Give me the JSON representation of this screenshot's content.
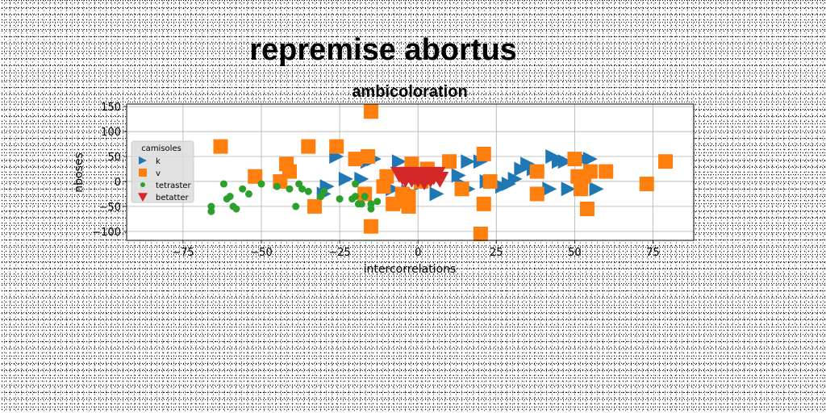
{
  "suptitle": "repremise abortus",
  "chart_data": {
    "type": "scatter",
    "title": "ambicoloration",
    "xlabel": "intercorrelations",
    "ylabel": "nboses",
    "xlim": [
      -93,
      88
    ],
    "ylim": [
      -118,
      155
    ],
    "xticks": [
      -75,
      -50,
      -25,
      0,
      25,
      50,
      75
    ],
    "yticks": [
      -100,
      -50,
      0,
      50,
      100,
      150
    ],
    "xtick_labels": [
      "−75",
      "−50",
      "−25",
      "0",
      "25",
      "50",
      "75"
    ],
    "ytick_labels": [
      "−100",
      "−50",
      "0",
      "50",
      "100",
      "150"
    ],
    "grid": true,
    "legend": {
      "title": "camisoles",
      "position": "left"
    },
    "series": [
      {
        "name": "k",
        "marker": "triangle-right",
        "color": "#1f77b4",
        "points": [
          [
            -26,
            50
          ],
          [
            -6,
            40
          ],
          [
            -3,
            -20
          ],
          [
            4,
            15
          ],
          [
            6,
            -25
          ],
          [
            13,
            12
          ],
          [
            16,
            -15
          ],
          [
            16,
            40
          ],
          [
            20,
            40
          ],
          [
            22,
            0
          ],
          [
            27,
            -10
          ],
          [
            29,
            -5
          ],
          [
            31,
            5
          ],
          [
            33,
            25
          ],
          [
            35,
            35
          ],
          [
            37,
            25
          ],
          [
            43,
            50
          ],
          [
            45,
            40
          ],
          [
            47,
            40
          ],
          [
            52,
            -15
          ],
          [
            53,
            45
          ],
          [
            54,
            10
          ],
          [
            55,
            45
          ],
          [
            57,
            -15
          ],
          [
            42,
            -15
          ],
          [
            -29,
            -10
          ],
          [
            -23,
            5
          ],
          [
            -18,
            5
          ],
          [
            -16,
            40
          ],
          [
            -14,
            45
          ],
          [
            -8,
            -15
          ],
          [
            -2,
            10
          ],
          [
            1,
            -5
          ],
          [
            48,
            -15
          ],
          [
            14,
            -5
          ],
          [
            -30,
            -25
          ]
        ]
      },
      {
        "name": "v",
        "marker": "square",
        "color": "#ff7f0e",
        "points": [
          [
            -63,
            70
          ],
          [
            -52,
            10
          ],
          [
            -44,
            0
          ],
          [
            -42,
            35
          ],
          [
            -41,
            20
          ],
          [
            -35,
            70
          ],
          [
            -33,
            -50
          ],
          [
            -26,
            70
          ],
          [
            -20,
            45
          ],
          [
            -17,
            -25
          ],
          [
            -16,
            50
          ],
          [
            -15,
            140
          ],
          [
            -15,
            -90
          ],
          [
            -11,
            -10
          ],
          [
            -10,
            10
          ],
          [
            -8,
            -45
          ],
          [
            -5,
            -40
          ],
          [
            -5,
            -25
          ],
          [
            -3,
            -50
          ],
          [
            -3,
            -30
          ],
          [
            -2,
            35
          ],
          [
            1,
            0
          ],
          [
            3,
            25
          ],
          [
            10,
            40
          ],
          [
            14,
            -15
          ],
          [
            20,
            -105
          ],
          [
            21,
            55
          ],
          [
            21,
            -45
          ],
          [
            23,
            0
          ],
          [
            38,
            -25
          ],
          [
            38,
            20
          ],
          [
            50,
            45
          ],
          [
            51,
            10
          ],
          [
            52,
            -15
          ],
          [
            53,
            10
          ],
          [
            54,
            -55
          ],
          [
            55,
            20
          ],
          [
            60,
            20
          ],
          [
            73,
            -5
          ],
          [
            79,
            40
          ]
        ]
      },
      {
        "name": "tetraster",
        "marker": "circle",
        "color": "#2ca02c",
        "points": [
          [
            -66,
            -60
          ],
          [
            -66,
            -50
          ],
          [
            -62,
            -5
          ],
          [
            -61,
            -35
          ],
          [
            -60,
            -30
          ],
          [
            -59,
            -50
          ],
          [
            -58,
            -55
          ],
          [
            -56,
            -15
          ],
          [
            -54,
            -25
          ],
          [
            -50,
            -5
          ],
          [
            -45,
            -10
          ],
          [
            -41,
            -15
          ],
          [
            -39,
            -50
          ],
          [
            -38,
            -5
          ],
          [
            -37,
            -15
          ],
          [
            -35,
            -20
          ],
          [
            -31,
            -30
          ],
          [
            -30,
            -20
          ],
          [
            -25,
            -35
          ],
          [
            -21,
            -35
          ],
          [
            -20,
            -5
          ],
          [
            -20,
            -30
          ],
          [
            -19,
            -45
          ],
          [
            -18,
            -45
          ],
          [
            -17,
            -30
          ],
          [
            -15,
            -45
          ],
          [
            -15,
            -55
          ],
          [
            -13,
            -40
          ]
        ]
      },
      {
        "name": "betatter",
        "marker": "triangle-down",
        "color": "#d62728",
        "points": [
          [
            -6,
            15
          ],
          [
            -5,
            10
          ],
          [
            -4,
            5
          ],
          [
            -3,
            15
          ],
          [
            -2,
            5
          ],
          [
            -1,
            10
          ],
          [
            0,
            5
          ],
          [
            1,
            15
          ],
          [
            2,
            0
          ],
          [
            3,
            10
          ],
          [
            4,
            5
          ],
          [
            5,
            10
          ],
          [
            6,
            15
          ],
          [
            7,
            5
          ],
          [
            -4,
            10
          ],
          [
            2,
            10
          ]
        ]
      }
    ]
  }
}
